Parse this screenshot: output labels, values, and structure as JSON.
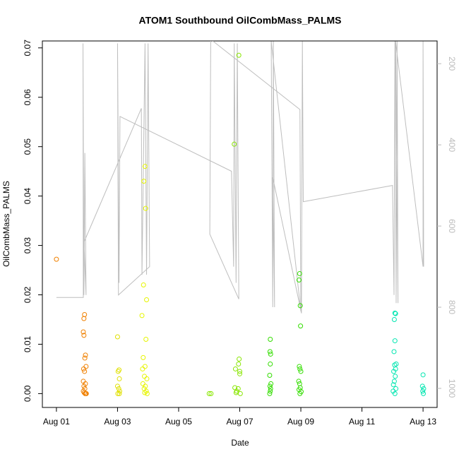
{
  "chart_data": {
    "type": "scatter",
    "title": "ATOM1 Southbound OilCombMass_PALMS",
    "xlabel": "Date",
    "ylabel": "OilCombMass_PALMS",
    "xlim": [
      -0.46,
      12.46
    ],
    "xticks": [
      {
        "value": 0,
        "label": "Aug 01"
      },
      {
        "value": 2,
        "label": "Aug 03"
      },
      {
        "value": 4,
        "label": "Aug 05"
      },
      {
        "value": 6,
        "label": "Aug 07"
      },
      {
        "value": 8,
        "label": "Aug 09"
      },
      {
        "value": 10,
        "label": "Aug 11"
      },
      {
        "value": 12,
        "label": "Aug 13"
      }
    ],
    "ylim": [
      -0.0028,
      0.0714
    ],
    "yticks": [
      {
        "value": 0,
        "label": "0.00"
      },
      0.01,
      0.02,
      0.03,
      0.04,
      0.05,
      0.06,
      0.07
    ],
    "y2lim": [
      1047,
      144
    ],
    "y2ticks": [
      200,
      400,
      600,
      800,
      1000
    ],
    "series": [
      {
        "color": "#f08000",
        "x": [
          0,
          0.92,
          0.9,
          0.88,
          0.9,
          0.95,
          0.93,
          0.97,
          0.89,
          0.92,
          0.88,
          0.95,
          0.9,
          0.93,
          0.88,
          0.91,
          0.94,
          0.96,
          0.98
        ],
        "values": [
          0.0272,
          0.016,
          0.0152,
          0.0125,
          0.0118,
          0.0078,
          0.0072,
          0.0055,
          0.005,
          0.0045,
          0.0025,
          0.002,
          0.0015,
          0.001,
          0.0005,
          0.0002,
          0,
          0,
          0
        ]
      },
      {
        "color": "#e0e000",
        "x": [
          2.0,
          2.05,
          2.02,
          2.06,
          2.0,
          2.04,
          2.07,
          2.01,
          2.06
        ],
        "values": [
          0.0115,
          0.0048,
          0.0045,
          0.003,
          0.0015,
          0.001,
          0.0005,
          0,
          0
        ]
      },
      {
        "color": "#e6f500",
        "x": [
          2.9,
          2.86,
          2.92,
          2.85,
          2.95,
          2.8,
          2.93,
          2.84,
          2.9,
          2.82,
          2.88,
          2.96,
          2.83,
          2.91,
          2.87,
          2.94,
          2.89,
          2.97
        ],
        "values": [
          0.046,
          0.043,
          0.0375,
          0.022,
          0.019,
          0.0158,
          0.011,
          0.0073,
          0.0055,
          0.005,
          0.0035,
          0.003,
          0.002,
          0.0015,
          0.001,
          0.0005,
          0.0002,
          0
        ]
      },
      {
        "color": "#88e600",
        "x": [
          5.0,
          5.06,
          5.97,
          5.82,
          5.98,
          5.96,
          5.86,
          6.0,
          6.0,
          5.84,
          5.95,
          5.9,
          5.88,
          6.02
        ],
        "values": [
          0,
          0,
          0.0685,
          0.0505,
          0.007,
          0.006,
          0.005,
          0.0045,
          0.004,
          0.0012,
          0.001,
          0.0005,
          0.0002,
          0
        ]
      },
      {
        "color": "#33dd00",
        "x": [
          7.0,
          6.99,
          7.01,
          7.0,
          6.98,
          7.02,
          6.99,
          7.01,
          7.0,
          6.98,
          7.96,
          7.94,
          7.98,
          7.99,
          7.95,
          7.97,
          8.0,
          7.93,
          7.96,
          7.98,
          7.94,
          8.01,
          7.97
        ],
        "values": [
          0.011,
          0.0085,
          0.008,
          0.006,
          0.0037,
          0.002,
          0.0015,
          0.001,
          0.0005,
          0,
          0.0243,
          0.023,
          0.0178,
          0.0137,
          0.0055,
          0.005,
          0.0045,
          0.0025,
          0.002,
          0.0012,
          0.0008,
          0.0004,
          0
        ]
      },
      {
        "color": "#00e6b0",
        "x": [
          11.08,
          11.1,
          11.06,
          11.08,
          11.05,
          11.12,
          11.07,
          11.1,
          11.04,
          11.09,
          11.06,
          11.03,
          11.11,
          11.02,
          11.08,
          12.0,
          11.98,
          12.02,
          11.99,
          12.01
        ],
        "values": [
          0.0163,
          0.0162,
          0.015,
          0.0107,
          0.0085,
          0.006,
          0.0058,
          0.005,
          0.0045,
          0.0035,
          0.0025,
          0.0018,
          0.001,
          0.0005,
          0,
          0.0038,
          0.0015,
          0.001,
          0.0005,
          0
        ]
      }
    ],
    "line": {
      "type": "line",
      "axis": "y2",
      "color": "#bebebe",
      "x": [
        0,
        0.88,
        0.87,
        0.9,
        0.93,
        0.97,
        0.9,
        2.78,
        2.8,
        2.9,
        2.95,
        3.0,
        3.05,
        2.03,
        2.0,
        2.05,
        2.08,
        5.73,
        5.8,
        5.82,
        5.88,
        5.92,
        5.97,
        5.02,
        5.05,
        7.97,
        8.0,
        7.03,
        7.08,
        7.1,
        7.14,
        7.08,
        8.02,
        8.05,
        8.08,
        11.0,
        11.05,
        11.08,
        11.12,
        11.15,
        11.18,
        11.1,
        12.0,
        12.0,
        12.02
      ],
      "values": [
        776,
        776,
        150,
        770,
        420,
        770,
        640,
        310,
        720,
        150,
        720,
        150,
        700,
        770,
        150,
        740,
        330,
        465,
        700,
        150,
        740,
        150,
        780,
        620,
        140,
        313,
        810,
        145,
        800,
        145,
        800,
        480,
        815,
        145,
        540,
        500,
        770,
        145,
        790,
        145,
        790,
        145,
        700,
        145,
        700
      ]
    }
  }
}
